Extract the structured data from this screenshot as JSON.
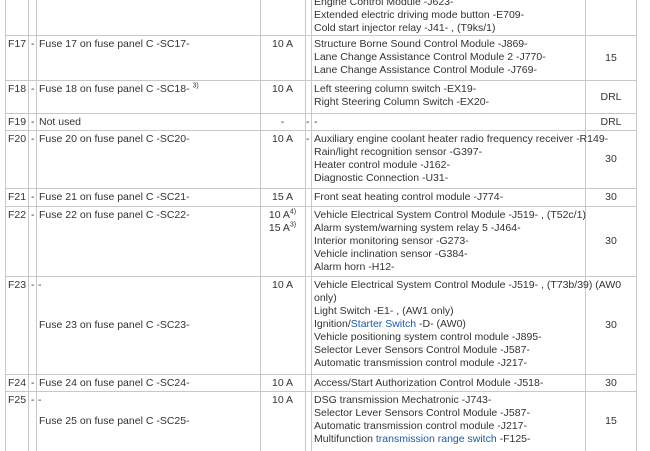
{
  "rows": [
    {
      "components": [
        "Engine Control Module -J623-",
        "Extended electric driving mode button -E709-",
        "Cold start injector relay -J41- , (T9ks/1)"
      ]
    },
    {
      "fuse": "F17",
      "dash": "-",
      "description": "Fuse 17 on fuse panel C -SC17-",
      "amps": [
        {
          "text": "10 A"
        }
      ],
      "components": [
        "Structure Borne Sound Control Module -J869-",
        "Lane Change Assistance Control Module 2 -J770-",
        "Lane Change Assistance Control Module -J769-"
      ],
      "terminal": "15"
    },
    {
      "fuse": "F18",
      "dash": "-",
      "description": "Fuse 18 on fuse panel C -SC18-",
      "sup": "3)",
      "amps": [
        {
          "text": "10 A"
        }
      ],
      "components": [
        "Left steering column switch -EX19-",
        "Right Steering Column Switch -EX20-"
      ],
      "terminal": "DRL"
    },
    {
      "fuse": "F19",
      "dash": "-",
      "description": "Not used",
      "amps": [
        {
          "text": "-"
        }
      ],
      "dash2": "-",
      "components": [
        "-"
      ],
      "terminal": "DRL"
    },
    {
      "fuse": "F20",
      "dash": "-",
      "description": "Fuse 20 on fuse panel C -SC20-",
      "amps": [
        {
          "text": "10 A"
        }
      ],
      "dash2": "-",
      "components": [
        "Auxiliary engine coolant heater radio frequency receiver -R149-",
        "Rain/light recognition sensor -G397-",
        "Heater control module -J162-",
        "Diagnostic Connection -U31-"
      ],
      "terminal": "30"
    },
    {
      "fuse": "F21",
      "dash": "-",
      "description": "Fuse 21 on fuse panel C -SC21-",
      "amps": [
        {
          "text": "15 A"
        }
      ],
      "components": [
        "Front seat heating control module -J774-"
      ],
      "terminal": "30"
    },
    {
      "fuse": "F22",
      "dash": "-",
      "description": "Fuse 22 on fuse panel C -SC22-",
      "amps": [
        {
          "text": "10 A",
          "sup": "4)"
        },
        {
          "text": "15 A",
          "sup": "3)"
        }
      ],
      "components": [
        "Vehicle Electrical System Control Module -J519- , (T52c/1)",
        "Alarm system/warning system relay 5 -J464-",
        "Interior monitoring sensor -G273-",
        "Vehicle inclination sensor -G384-",
        "Alarm horn -H12-"
      ],
      "terminal": "30"
    },
    {
      "fuse": "F23",
      "dash": "-",
      "dash3": "-",
      "description": "Fuse 23 on fuse panel C -SC23-",
      "amps": [
        {
          "text": "10 A"
        }
      ],
      "components": [
        "Vehicle Electrical System Control Module -J519- , (T73b/39) (AW0",
        "only)",
        "Light Switch -E1- , (AW1 only)",
        [
          "Ignition/",
          {
            "link": "Starter Switch"
          },
          " -D- (AW0)"
        ],
        "Vehicle positioning system control module -J895-",
        "Selector Lever Sensors Control Module -J587-",
        "Automatic transmission control module -J217-"
      ],
      "terminal": "30"
    },
    {
      "fuse": "F24",
      "dash": "-",
      "description": "Fuse 24 on fuse panel C -SC24-",
      "amps": [
        {
          "text": "10 A"
        }
      ],
      "components": [
        "Access/Start Authorization Control Module -J518-"
      ],
      "terminal": "30"
    },
    {
      "fuse": "F25",
      "dash": "-",
      "dash3": "-",
      "description": "Fuse 25 on fuse panel C -SC25-",
      "amps": [
        {
          "text": "10 A"
        }
      ],
      "components": [
        "DSG transmission Mechatronic -J743-",
        "Selector Lever Sensors Control Module -J587-",
        "Automatic transmission control module -J217-",
        [
          "Multifunction ",
          {
            "link": "transmission range switch"
          },
          " -F125-"
        ]
      ],
      "terminal": "15"
    }
  ]
}
